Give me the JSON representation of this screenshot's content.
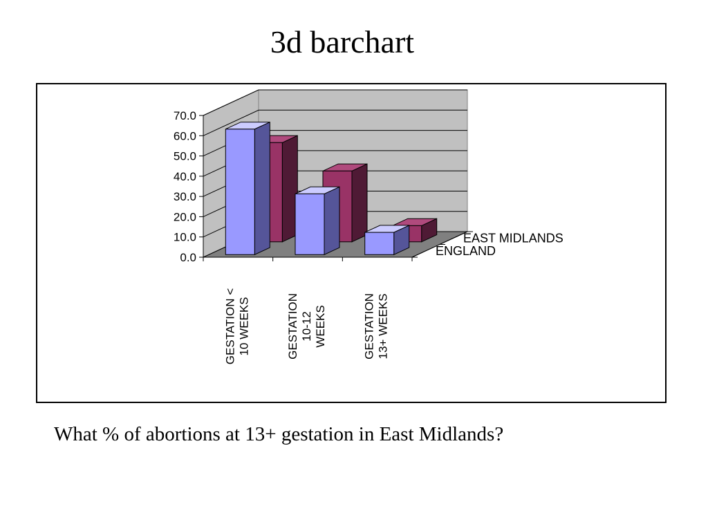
{
  "slide": {
    "title": "3d barchart",
    "question": "What % of abortions at 13+ gestation in East Midlands?"
  },
  "chart_data": {
    "type": "bar",
    "style": "3d-clustered-depth",
    "categories": [
      [
        "GESTATION <",
        "10 WEEKS"
      ],
      [
        "GESTATION",
        "10-12",
        "WEEKS"
      ],
      [
        "GESTATION",
        "13+ WEEKS"
      ]
    ],
    "series": [
      {
        "name": "ENGLAND",
        "values": [
          62.0,
          30.0,
          11.0
        ],
        "color": "#9999ff",
        "side_color": "#555599",
        "top_color": "#ccccff"
      },
      {
        "name": "EAST MIDLANDS",
        "values": [
          49.0,
          35.0,
          8.0
        ],
        "color": "#993366",
        "side_color": "#4f1a35",
        "top_color": "#b04a7d"
      }
    ],
    "ylim": [
      0,
      70
    ],
    "yticks": [
      "0.0",
      "10.0",
      "20.0",
      "30.0",
      "40.0",
      "50.0",
      "60.0",
      "70.0"
    ],
    "grid": true,
    "legend": "depth-axis-right"
  }
}
